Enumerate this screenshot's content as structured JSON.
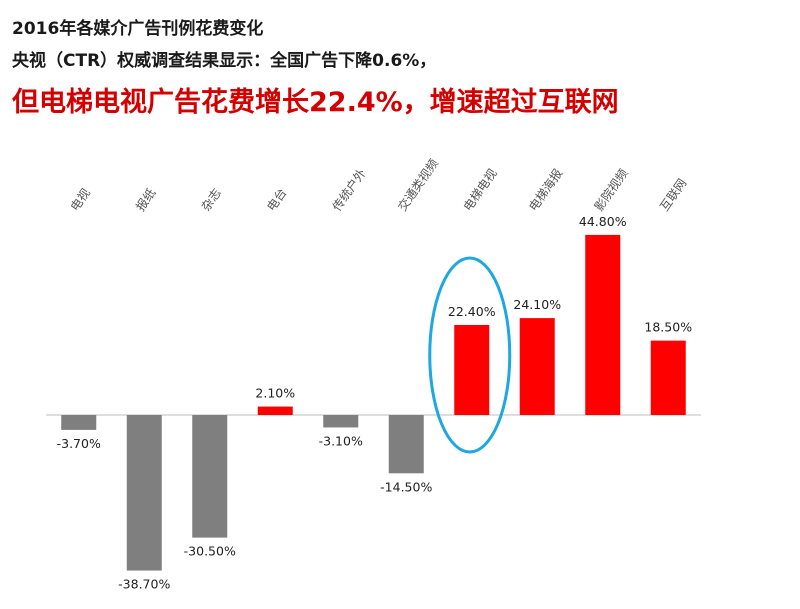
{
  "header": {
    "title": "2016年各媒介广告刊例花费变化",
    "subtitle": "央视（CTR）权威调查结果显示：全国广告下降0.6%，",
    "headline": "但电梯电视广告花费增长22.4%，增速超过互联网"
  },
  "colors": {
    "negative": "#7f7f7f",
    "positive": "#ff0000",
    "highlight_ellipse": "#1ea7e1",
    "headline": "#d40000"
  },
  "chart_data": {
    "type": "bar",
    "title": "",
    "xlabel": "",
    "ylabel": "",
    "categories": [
      "电视",
      "报纸",
      "杂志",
      "电台",
      "传统户外",
      "交通类视频",
      "电梯电视",
      "电梯海报",
      "影院视频",
      "互联网"
    ],
    "values": [
      -3.7,
      -38.7,
      -30.5,
      2.1,
      -3.1,
      -14.5,
      22.4,
      24.1,
      44.8,
      18.5
    ],
    "value_labels": [
      "-3.70%",
      "-38.70%",
      "-30.50%",
      "2.10%",
      "-3.10%",
      "-14.50%",
      "22.40%",
      "24.10%",
      "44.80%",
      "18.50%"
    ],
    "ylim": [
      -40,
      46
    ],
    "grid": false,
    "legend": "none",
    "highlighted_category": "电梯电视"
  }
}
